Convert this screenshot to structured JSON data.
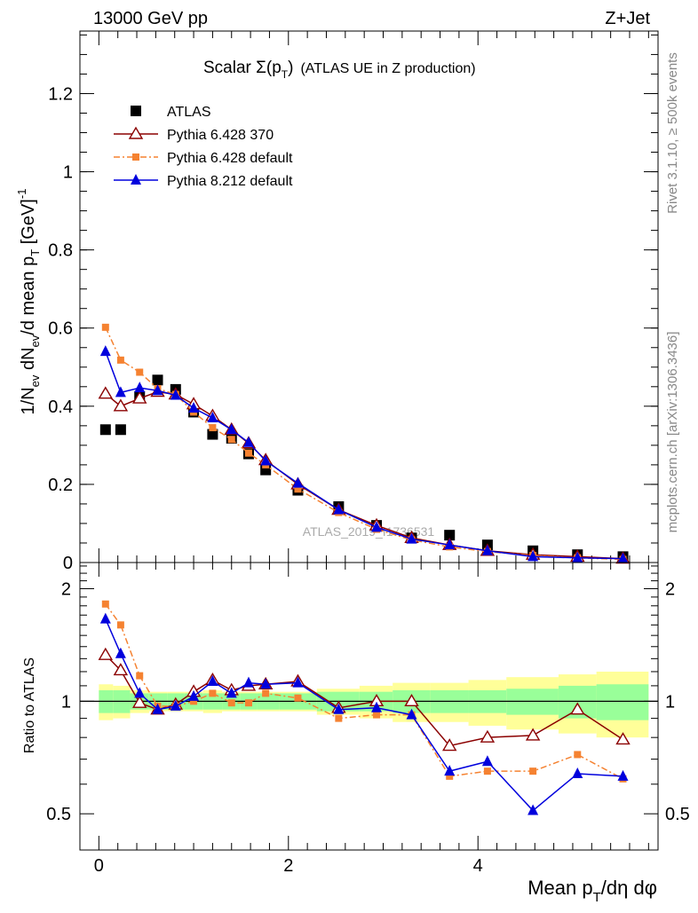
{
  "header": {
    "energy_label": "13000 GeV pp",
    "process_label": "Z+Jet"
  },
  "side_labels": {
    "rivet": "Rivet 3.1.10, ≥ 500k events",
    "mcplots": "mcplots.cern.ch [arXiv:1306.3436]"
  },
  "colors": {
    "atlas": "#000000",
    "pythia6_370": "#8b0000",
    "pythia6_default": "#f58231",
    "pythia8": "#0000dd",
    "band_inner": "#99ff99",
    "band_outer": "#ffff99"
  },
  "chart_data": [
    {
      "type": "scatter",
      "name": "main",
      "title": "Scalar Σ(p_T) (ATLAS UE in Z production)",
      "title_main": "Scalar Σ(p",
      "title_sub": "T",
      "title_close": ")",
      "title_rest": "(ATLAS UE in Z production)",
      "ylabel": "1/N_ev dN_ev/d mean p_T [GeV]^-1",
      "watermark": "ATLAS_2019_I1736531",
      "xlim": [
        -0.2,
        5.9
      ],
      "ylim": [
        0,
        1.36
      ],
      "yticks": [
        0,
        0.2,
        0.4,
        0.6,
        0.8,
        1,
        1.2
      ],
      "ytick_labels": [
        "0",
        "0.2",
        "0.4",
        "0.6",
        "0.8",
        "1",
        "1.2"
      ],
      "x": [
        0.07,
        0.23,
        0.43,
        0.62,
        0.81,
        1.0,
        1.2,
        1.4,
        1.58,
        1.76,
        2.1,
        2.53,
        2.93,
        3.3,
        3.7,
        4.1,
        4.58,
        5.05,
        5.53
      ],
      "legend": [
        "ATLAS",
        "Pythia 6.428 370",
        "Pythia 6.428 default",
        "Pythia 8.212 default"
      ],
      "series": [
        {
          "name": "ATLAS",
          "marker": "square",
          "values": [
            0.34,
            0.34,
            0.425,
            0.467,
            0.443,
            0.385,
            0.328,
            0.318,
            0.278,
            0.237,
            0.185,
            0.143,
            0.095,
            0.063,
            0.07,
            0.045,
            0.03,
            0.02,
            0.015
          ]
        },
        {
          "name": "Pythia 6.428 370",
          "marker": "open-triangle",
          "values": [
            0.432,
            0.4,
            0.42,
            0.437,
            0.43,
            0.405,
            0.375,
            0.34,
            0.305,
            0.262,
            0.2,
            0.135,
            0.095,
            0.063,
            0.045,
            0.03,
            0.02,
            0.015,
            0.01
          ]
        },
        {
          "name": "Pythia 6.428 default",
          "marker": "small-square",
          "values": [
            0.602,
            0.518,
            0.487,
            0.445,
            0.43,
            0.385,
            0.345,
            0.315,
            0.28,
            0.25,
            0.188,
            0.128,
            0.085,
            0.058,
            0.04,
            0.028,
            0.018,
            0.012,
            0.008
          ]
        },
        {
          "name": "Pythia 8.212 default",
          "marker": "triangle",
          "values": [
            0.54,
            0.435,
            0.447,
            0.44,
            0.428,
            0.395,
            0.37,
            0.34,
            0.307,
            0.26,
            0.203,
            0.135,
            0.09,
            0.06,
            0.045,
            0.03,
            0.015,
            0.012,
            0.01
          ]
        }
      ]
    },
    {
      "type": "scatter",
      "name": "ratio",
      "ylabel": "Ratio to ATLAS",
      "xlabel": "Mean p_T/dη dφ",
      "xlabel_main": "Mean p",
      "xlabel_sub": "T",
      "xlabel_rest": "/dη dφ",
      "xlim": [
        -0.2,
        5.9
      ],
      "ylim": [
        0.4,
        2.35
      ],
      "yticks": [
        0.5,
        1,
        2
      ],
      "ytick_labels": [
        "0.5",
        "1",
        "2"
      ],
      "xticks": [
        0,
        2,
        4
      ],
      "xtick_labels": [
        "0",
        "2",
        "4"
      ],
      "x": [
        0.07,
        0.23,
        0.43,
        0.62,
        0.81,
        1.0,
        1.2,
        1.4,
        1.58,
        1.76,
        2.1,
        2.53,
        2.93,
        3.3,
        3.7,
        4.1,
        4.58,
        5.05,
        5.53
      ],
      "bin_edges": [
        0.0,
        0.15,
        0.33,
        0.53,
        0.72,
        0.9,
        1.1,
        1.3,
        1.49,
        1.67,
        1.9,
        2.3,
        2.75,
        3.1,
        3.5,
        3.9,
        4.3,
        4.85,
        5.25,
        5.8
      ],
      "band_inner_halfwidth": [
        0.07,
        0.07,
        0.05,
        0.05,
        0.05,
        0.05,
        0.05,
        0.05,
        0.05,
        0.05,
        0.05,
        0.06,
        0.06,
        0.07,
        0.07,
        0.07,
        0.08,
        0.1,
        0.11
      ],
      "band_outer_halfwidth": [
        0.11,
        0.1,
        0.07,
        0.06,
        0.06,
        0.06,
        0.07,
        0.06,
        0.06,
        0.06,
        0.06,
        0.08,
        0.1,
        0.12,
        0.12,
        0.14,
        0.16,
        0.18,
        0.2
      ],
      "series": [
        {
          "name": "Pythia 6.428 370",
          "marker": "open-triangle",
          "values": [
            1.33,
            1.21,
            0.99,
            0.95,
            0.98,
            1.06,
            1.14,
            1.07,
            1.1,
            1.11,
            1.13,
            0.96,
            1.0,
            1.0,
            0.76,
            0.8,
            0.81,
            0.95,
            0.79
          ]
        },
        {
          "name": "Pythia 6.428 default",
          "marker": "small-square",
          "values": [
            1.82,
            1.6,
            1.17,
            0.97,
            0.97,
            1.0,
            1.05,
            0.99,
            0.99,
            1.05,
            1.02,
            0.9,
            0.92,
            0.92,
            0.63,
            0.65,
            0.65,
            0.72,
            0.62
          ]
        },
        {
          "name": "Pythia 8.212 default",
          "marker": "triangle",
          "values": [
            1.66,
            1.34,
            1.05,
            0.95,
            0.97,
            1.03,
            1.13,
            1.05,
            1.12,
            1.11,
            1.12,
            0.95,
            0.96,
            0.92,
            0.65,
            0.69,
            0.51,
            0.64,
            0.63
          ]
        }
      ]
    }
  ]
}
